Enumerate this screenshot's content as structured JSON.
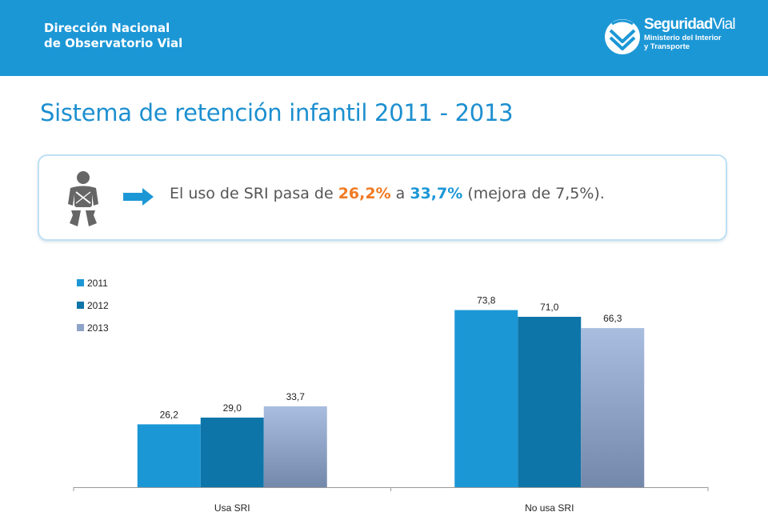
{
  "header": {
    "org_line1": "Dirección Nacional",
    "org_line2": "de Observatorio Vial",
    "logo_title_bold": "Seguridad",
    "logo_title_light": "Vial",
    "logo_sub1": "Ministerio del Interior",
    "logo_sub2": "y Transporte"
  },
  "title": "Sistema de retención infantil 2011 - 2013",
  "callout": {
    "text_before": "El uso de SRI pasa de ",
    "value_from": "26,2%",
    "text_mid": " a ",
    "value_to": "33,7%",
    "text_after": " (mejora de 7,5%).",
    "icon_child": "child-seat-icon",
    "icon_arrow": "right-arrow-icon"
  },
  "colors": {
    "header_bg": "#1c97d6",
    "title": "#1c8fcf",
    "highlight_from": "#f07a23",
    "highlight_to": "#1c97d6"
  },
  "chart_data": {
    "type": "bar",
    "categories": [
      "Usa SRI",
      "No usa SRI"
    ],
    "series": [
      {
        "name": "2011",
        "values": [
          26.2,
          73.8
        ],
        "labels": [
          "26,2",
          "73,8"
        ],
        "color": "#1c97d6"
      },
      {
        "name": "2012",
        "values": [
          29.0,
          71.0
        ],
        "labels": [
          "29,0",
          "71,0"
        ],
        "color": "#0d75a8"
      },
      {
        "name": "2013",
        "values": [
          33.7,
          66.3
        ],
        "labels": [
          "33,7",
          "66,3"
        ],
        "color": "#8fa3c8"
      }
    ],
    "ylim": [
      0,
      100
    ],
    "grid": false,
    "legend": "top-left",
    "data_labels": true
  }
}
